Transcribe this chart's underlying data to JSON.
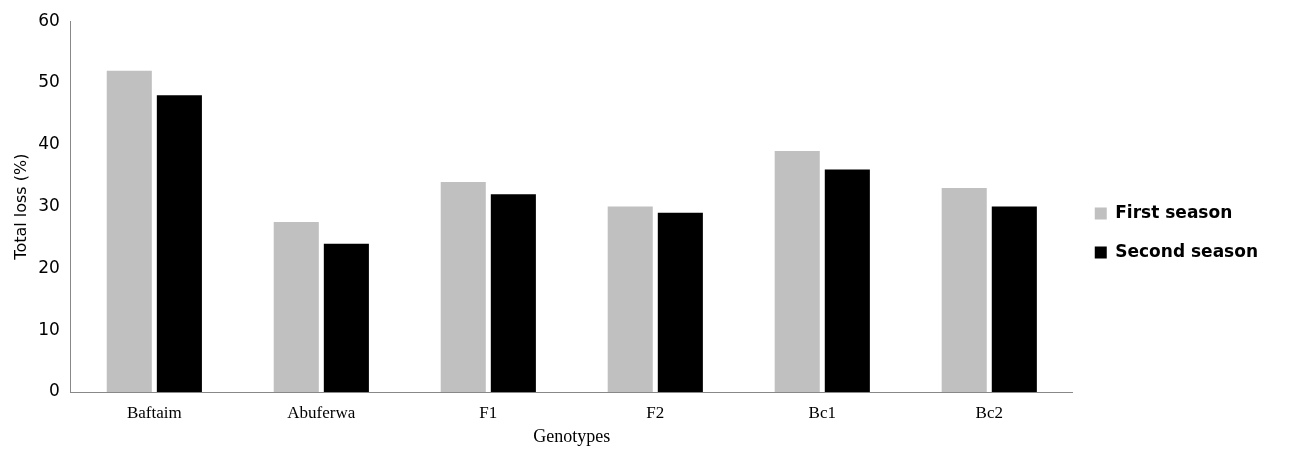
{
  "chart_data": {
    "type": "bar",
    "xlabel": "Genotypes",
    "ylabel": "Total loss (%)",
    "categories": [
      "Baftaim",
      "Abuferwa",
      "F1",
      "F2",
      "Bc1",
      "Bc2"
    ],
    "series": [
      {
        "name": "First season",
        "color": "#c0c0c0",
        "values": [
          52,
          27.5,
          34,
          30,
          39,
          33
        ]
      },
      {
        "name": "Second season",
        "color": "#000000",
        "values": [
          48,
          24,
          32,
          29,
          36,
          30
        ]
      }
    ],
    "ylim": [
      0,
      60
    ],
    "yticks": [
      0,
      10,
      20,
      30,
      40,
      50,
      60
    ],
    "grid": false,
    "legend": "right"
  }
}
